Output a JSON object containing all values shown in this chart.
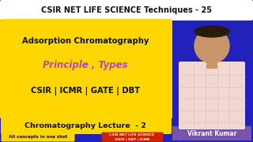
{
  "bg_color": "#2222bb",
  "top_bar_color": "#ffffff",
  "top_bar_text": "CSIR NET LIFE SCIENCE Techniques - 25",
  "top_bar_text_color": "#111111",
  "yellow_box_color": "#FFD700",
  "yellow_box_text1": "Adsorption Chromatography",
  "yellow_box_text1_color": "#111111",
  "yellow_box_text2": "Principle , Types",
  "yellow_box_text2_color": "#bb44bb",
  "yellow_box_text3": "CSIR | ICMR | GATE | DBT",
  "yellow_box_text3_color": "#111111",
  "bottom_bar_color": "#FFD700",
  "bottom_bar_text": "Chromatography Lecture  - 2",
  "bottom_bar_text_color": "#111111",
  "small_yellow_box_color": "#FFD700",
  "small_yellow_box_text": "All concepts in one shot",
  "small_yellow_box_text_color": "#111111",
  "small_red_box_color": "#cc2200",
  "small_red_box_text": "CSIR NET LIFE SCIENCE\nGATE | DBT | ICMR",
  "small_red_box_text_color": "#ffffff",
  "name_bar_color": "#7755aa",
  "name_text": "Vikrant Kumar",
  "name_text_color": "#ffffff",
  "person_skin": "#c8956b",
  "person_shirt": "#f0d8d0",
  "person_shirt_lines": "#ddbbbb"
}
